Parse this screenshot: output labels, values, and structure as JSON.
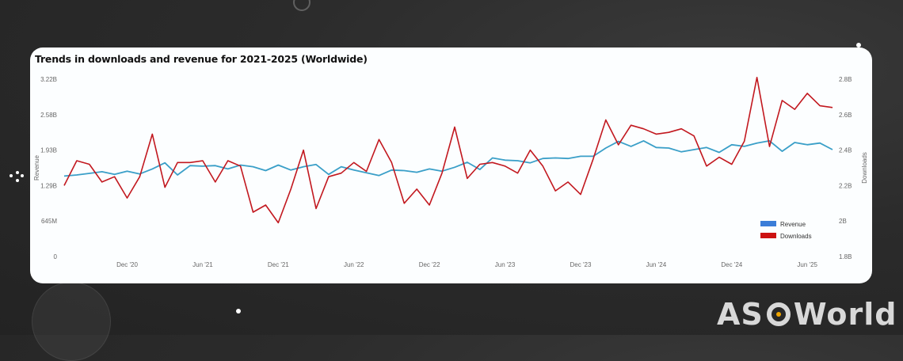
{
  "brand": {
    "left": "AS",
    "right": "World"
  },
  "colors": {
    "revenue": "#3a9fc8",
    "downloads": "#c2181f",
    "legend_revenue": "#3b7dd8",
    "legend_downloads": "#cc1111"
  },
  "chart_data": {
    "type": "line",
    "title": "Trends in downloads and revenue for 2021-2025 (Worldwide)",
    "x_tick_labels": [
      "Dec '20",
      "Jun '21",
      "Dec '21",
      "Jun '22",
      "Dec '22",
      "Jun '23",
      "Dec '23",
      "Jun '24",
      "Dec '24",
      "Jun '25"
    ],
    "x_start": "2020-07",
    "y_left": {
      "label": "Revenue",
      "ticks": [
        "0",
        "645M",
        "1.29B",
        "1.93B",
        "2.58B",
        "3.22B"
      ],
      "range": [
        0,
        3.22
      ],
      "unit": "B"
    },
    "y_right": {
      "label": "Downloads",
      "ticks": [
        "1.8B",
        "2B",
        "2.2B",
        "2.4B",
        "2.6B",
        "2.8B"
      ],
      "range": [
        1.8,
        2.8
      ],
      "unit": "B"
    },
    "legend": {
      "placement": "bottom-right",
      "entries": [
        "Revenue",
        "Downloads"
      ]
    },
    "grid": false,
    "series": [
      {
        "name": "Revenue",
        "axis": "left",
        "values": [
          1.46,
          1.48,
          1.51,
          1.54,
          1.49,
          1.55,
          1.5,
          1.59,
          1.7,
          1.48,
          1.65,
          1.64,
          1.65,
          1.59,
          1.66,
          1.63,
          1.56,
          1.66,
          1.57,
          1.63,
          1.67,
          1.49,
          1.63,
          1.57,
          1.52,
          1.47,
          1.57,
          1.56,
          1.53,
          1.59,
          1.55,
          1.62,
          1.71,
          1.58,
          1.79,
          1.75,
          1.74,
          1.7,
          1.78,
          1.79,
          1.78,
          1.82,
          1.82,
          1.97,
          2.09,
          2.0,
          2.1,
          1.98,
          1.97,
          1.9,
          1.94,
          1.98,
          1.89,
          2.03,
          2.0,
          2.06,
          2.1,
          1.91,
          2.07,
          2.03,
          2.06,
          1.94
        ]
      },
      {
        "name": "Downloads",
        "axis": "right",
        "values": [
          2.2,
          2.34,
          2.32,
          2.22,
          2.25,
          2.13,
          2.25,
          2.49,
          2.19,
          2.33,
          2.33,
          2.34,
          2.22,
          2.34,
          2.31,
          2.05,
          2.09,
          1.99,
          2.18,
          2.4,
          2.07,
          2.25,
          2.27,
          2.33,
          2.28,
          2.46,
          2.33,
          2.1,
          2.18,
          2.09,
          2.27,
          2.53,
          2.24,
          2.32,
          2.33,
          2.31,
          2.27,
          2.4,
          2.31,
          2.17,
          2.22,
          2.15,
          2.35,
          2.57,
          2.43,
          2.54,
          2.52,
          2.49,
          2.5,
          2.52,
          2.48,
          2.31,
          2.36,
          2.32,
          2.45,
          2.81,
          2.42,
          2.68,
          2.63,
          2.72,
          2.65,
          2.64
        ]
      }
    ]
  }
}
